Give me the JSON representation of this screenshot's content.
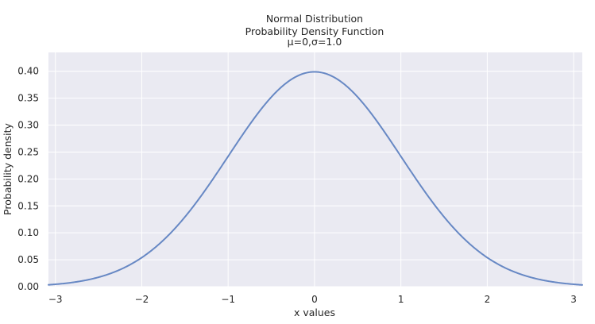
{
  "chart_data": {
    "type": "line",
    "title_lines": [
      "Normal Distribution",
      "Probability Density Function",
      "μ=0,σ=1.0"
    ],
    "xlabel": "x values",
    "ylabel": "Probability density",
    "xlim": [
      -3.08,
      3.1
    ],
    "ylim": [
      0.0,
      0.435
    ],
    "x_ticks": [
      -3,
      -2,
      -1,
      0,
      1,
      2,
      3
    ],
    "x_tick_labels": [
      "−3",
      "−2",
      "−1",
      "0",
      "1",
      "2",
      "3"
    ],
    "y_ticks": [
      0.0,
      0.05,
      0.1,
      0.15,
      0.2,
      0.25,
      0.3,
      0.35,
      0.4
    ],
    "y_tick_labels": [
      "0.00",
      "0.05",
      "0.10",
      "0.15",
      "0.20",
      "0.25",
      "0.30",
      "0.35",
      "0.40"
    ],
    "grid": true,
    "series": [
      {
        "distribution": "normal",
        "mu": 0,
        "sigma": 1.0,
        "x": [
          -3.08,
          -3.0,
          -2.75,
          -2.5,
          -2.25,
          -2.0,
          -1.75,
          -1.5,
          -1.25,
          -1.0,
          -0.75,
          -0.5,
          -0.25,
          0.0,
          0.25,
          0.5,
          0.75,
          1.0,
          1.25,
          1.5,
          1.75,
          2.0,
          2.25,
          2.5,
          2.75,
          3.0,
          3.1
        ],
        "values": [
          0.0035,
          0.0044,
          0.0091,
          0.0175,
          0.0317,
          0.054,
          0.0863,
          0.1295,
          0.1826,
          0.242,
          0.3011,
          0.3521,
          0.3867,
          0.3989,
          0.3867,
          0.3521,
          0.3011,
          0.242,
          0.1826,
          0.1295,
          0.0863,
          0.054,
          0.0317,
          0.0175,
          0.0091,
          0.0044,
          0.0033
        ]
      }
    ],
    "colors": {
      "plot_background": "#eaeaf2",
      "grid": "#ffffff",
      "line": "#6788c4"
    }
  }
}
